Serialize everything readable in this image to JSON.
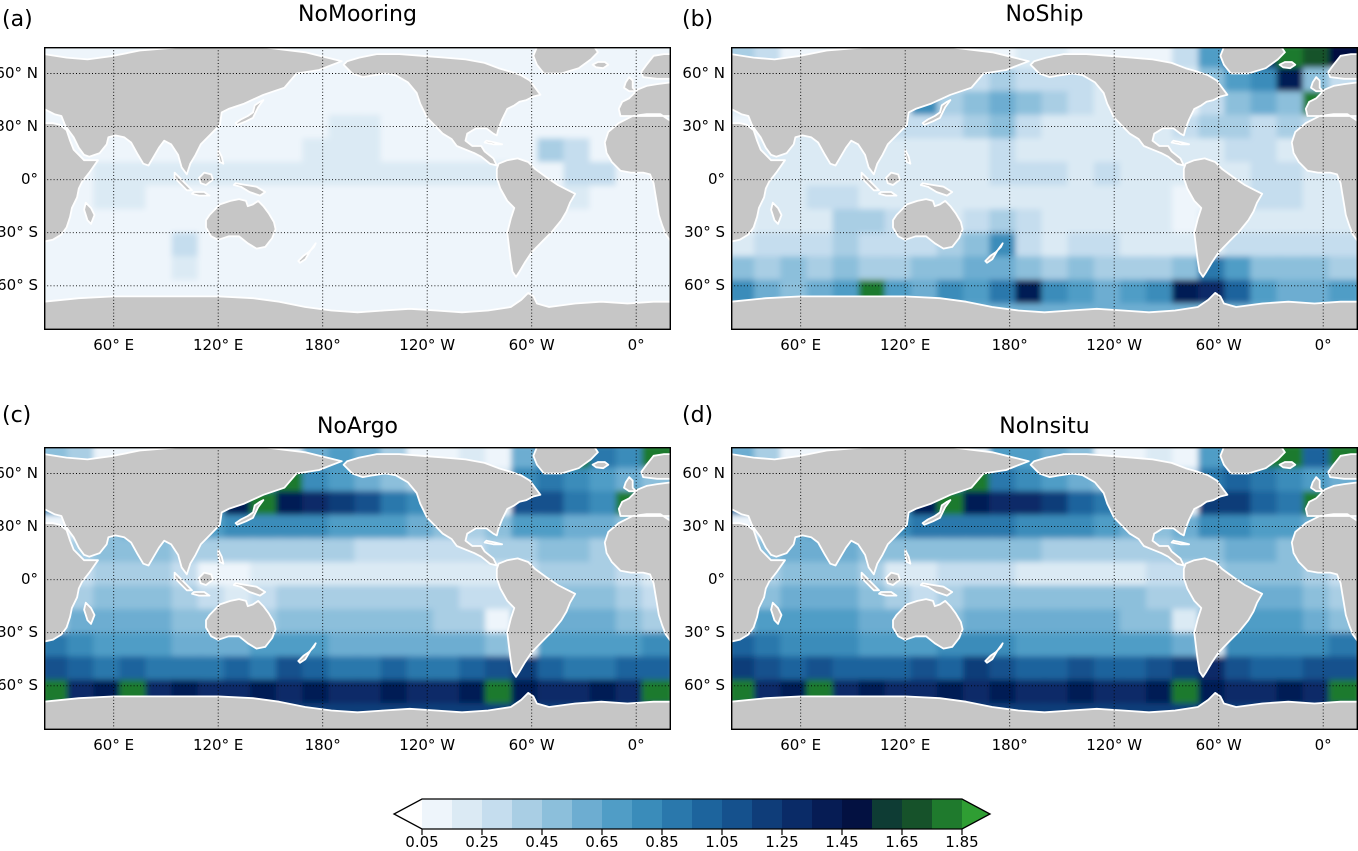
{
  "figure": {
    "background": "#ffffff",
    "land_color": "#c6c6c6",
    "coastline_color": "#ffffff",
    "gridline_color": "#000000",
    "frame_color": "#000000",
    "text_color": "#000000"
  },
  "chart_data": {
    "type": "heatmap",
    "description": "Four-panel global map figure (equirectangular, longitudes 20E-380E, latitudes 75N-85S) of an ocean error/spread field for observing-system experiments, shaded with a discrete white-blue-green colormap; gray = land.",
    "lon_range": [
      20,
      380
    ],
    "lat_range": [
      -85,
      75
    ],
    "grid_on": true,
    "lon_ticks": [
      {
        "label": "60° E",
        "lon": 60
      },
      {
        "label": "120° E",
        "lon": 120
      },
      {
        "label": "180°",
        "lon": 180
      },
      {
        "label": "120° W",
        "lon": 240
      },
      {
        "label": "60° W",
        "lon": 300
      },
      {
        "label": "0°",
        "lon": 360
      }
    ],
    "lat_ticks": [
      {
        "label": "60° N",
        "lat": 60
      },
      {
        "label": "30° N",
        "lat": 30
      },
      {
        "label": "0°",
        "lat": 0
      },
      {
        "label": "30° S",
        "lat": -30
      },
      {
        "label": "60° S",
        "lat": -60
      }
    ],
    "level_chars": "0123456789abcdefghij",
    "level_colors": [
      "#ffffff",
      "#eef5fb",
      "#dbeaf4",
      "#c5ddee",
      "#a9cee4",
      "#8cbfdb",
      "#6dadd1",
      "#509dc6",
      "#3a8cba",
      "#2a78ac",
      "#1d649d",
      "#15518d",
      "#0f3d79",
      "#0a2b67",
      "#061c54",
      "#031141",
      "#0e3c34",
      "#16522a",
      "#1f7a2d",
      "#2f9e33"
    ],
    "level_note": "char index i maps to value bin [0.05+0.1*(i-1), 0.05+0.1*i]; '0' = below 0.05 (white), 'j' = above 1.85 (bright green). Grids below are coarse 24 lon x 12 lat estimates read from the image.",
    "panels": [
      {
        "id": "a",
        "letter": "(a)",
        "title": "NoMooring",
        "grid": [
          "111111111111111111111111",
          "111111111111111111111111",
          "111111111111111111111111",
          "111111111112211111111111",
          "111111111122211111143111",
          "112222222222222222113311",
          "112211111111111111112111",
          "111111111111111111111111",
          "111113111111111111111111",
          "111112111111111111111111",
          "111111111111111111111111",
          "111111111111111111111111"
        ]
      },
      {
        "id": "b",
        "letter": "(b)",
        "title": "NoShip",
        "grid": [
          "4311111111122111137beihf",
          "111111123343332112578e53",
          "2111112845654322113565i2",
          "112221333453222223443431",
          "122222222232222222233221",
          "122222222233323222223322",
          "122332222222222221123322",
          "122244322343222221222222",
          "233343334583233222233333",
          "545454455665454445975554",
          "86567i76879e87678eda7667",
          "666666666666666666666666"
        ]
      },
      {
        "id": "c",
        "letter": "(c)",
        "title": "NoArgo",
        "grid": [
          "54111111126764112169i98i",
          "111111359i87654212898765",
          "8611117eiedcb98611bb98i4",
          "125665788887776545776651",
          "145554444444333334455441",
          "134443112222222222344432",
          "245554323444444433255543",
          "466665514555555441566654",
          "987776667776666665277778",
          "ba9a999a9ba99a99abca99aa",
          "ideideddededdeddeieddedi",
          "cccccccccccccccccccccccc"
        ]
      },
      {
        "id": "d",
        "letter": "(d)",
        "title": "NoInsitu",
        "grid": [
          "6411111112776511217aiiai",
          "111111469i987653239a9876",
          "9711118eieddca9711cca9i5",
          "136776899998887656887761",
          "156665555555444445566552",
          "145554223332222233455543",
          "356665434555555544366654",
          "577776615666666552677765",
          "a98887778887777776288889",
          "cbabaaabacbaabaabcdbaabb",
          "ideideddededdeddeieddedi",
          "cccccccccccccccccccccccc"
        ]
      }
    ]
  },
  "colorbar": {
    "orientation": "horizontal",
    "tick_labels": [
      "0.05",
      "0.25",
      "0.45",
      "0.65",
      "0.85",
      "1.05",
      "1.25",
      "1.45",
      "1.65",
      "1.85"
    ],
    "tick_values": [
      0.05,
      0.25,
      0.45,
      0.65,
      0.85,
      1.05,
      1.25,
      1.45,
      1.65,
      1.85
    ],
    "bin_width": 0.1,
    "segment_count": 18,
    "under_color": "#ffffff",
    "over_color": "#2f9e33",
    "outline_color": "#000000",
    "extend": "both"
  }
}
